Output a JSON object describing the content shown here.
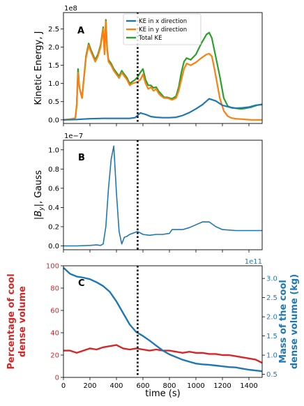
{
  "chart_data": [
    {
      "type": "line",
      "panel_label": "A",
      "ylabel": "Kinetic Energy, J",
      "y_exponent": "1e8",
      "xlim": [
        0,
        1500
      ],
      "ylim": [
        -0.1,
        2.95
      ],
      "yticks": [
        0.0,
        0.5,
        1.0,
        1.5,
        2.0,
        2.5
      ],
      "ytick_labels": [
        "0.0",
        "0.5",
        "1.0",
        "1.5",
        "2.0",
        "2.5"
      ],
      "xticks": [
        0,
        200,
        400,
        600,
        800,
        1000,
        1200,
        1400
      ],
      "vline_x": 560,
      "legend_position": "top-center",
      "series": [
        {
          "name": "KE in x direction",
          "color": "#1f77b4",
          "x": [
            0,
            100,
            150,
            200,
            300,
            350,
            400,
            450,
            500,
            540,
            560,
            580,
            620,
            660,
            700,
            750,
            800,
            850,
            900,
            950,
            1000,
            1050,
            1100,
            1150,
            1200,
            1250,
            1300,
            1350,
            1400,
            1450,
            1500
          ],
          "y": [
            0.0,
            0.01,
            0.02,
            0.03,
            0.04,
            0.04,
            0.04,
            0.04,
            0.04,
            0.06,
            0.12,
            0.19,
            0.15,
            0.09,
            0.07,
            0.06,
            0.06,
            0.07,
            0.12,
            0.2,
            0.3,
            0.42,
            0.58,
            0.52,
            0.4,
            0.35,
            0.32,
            0.33,
            0.35,
            0.4,
            0.42
          ]
        },
        {
          "name": "KE in y direction",
          "color": "#ff7f0e",
          "x": [
            0,
            60,
            90,
            100,
            110,
            120,
            140,
            170,
            190,
            210,
            240,
            260,
            280,
            300,
            310,
            320,
            330,
            340,
            360,
            380,
            400,
            420,
            440,
            460,
            480,
            500,
            520,
            540,
            560,
            580,
            600,
            620,
            640,
            660,
            680,
            700,
            720,
            740,
            760,
            780,
            800,
            820,
            850,
            870,
            890,
            910,
            930,
            960,
            1000,
            1040,
            1080,
            1100,
            1120,
            1140,
            1180,
            1210,
            1240,
            1270,
            1300,
            1340,
            1380,
            1420,
            1460,
            1500
          ],
          "y": [
            0.0,
            0.02,
            0.05,
            0.4,
            1.3,
            0.9,
            0.6,
            1.7,
            2.05,
            1.85,
            1.6,
            1.75,
            2.0,
            2.5,
            1.8,
            2.7,
            1.9,
            1.6,
            1.5,
            1.35,
            1.25,
            1.15,
            1.3,
            1.2,
            1.1,
            0.95,
            1.0,
            1.02,
            1.05,
            1.1,
            1.25,
            1.0,
            0.85,
            0.9,
            0.8,
            0.85,
            0.72,
            0.65,
            0.6,
            0.6,
            0.58,
            0.55,
            0.6,
            0.8,
            1.1,
            1.4,
            1.55,
            1.5,
            1.58,
            1.7,
            1.8,
            1.82,
            1.75,
            1.4,
            0.6,
            0.25,
            0.1,
            0.05,
            0.03,
            0.02,
            0.01,
            0.0,
            0.0,
            0.0
          ]
        },
        {
          "name": "Total KE",
          "color": "#2ca02c",
          "x": [
            0,
            60,
            90,
            100,
            110,
            120,
            140,
            170,
            190,
            210,
            240,
            260,
            280,
            300,
            310,
            320,
            330,
            340,
            360,
            380,
            400,
            420,
            440,
            460,
            480,
            500,
            520,
            540,
            560,
            580,
            600,
            620,
            640,
            660,
            680,
            700,
            720,
            740,
            760,
            780,
            800,
            820,
            850,
            870,
            890,
            910,
            930,
            960,
            1000,
            1040,
            1080,
            1100,
            1120,
            1140,
            1180,
            1210,
            1240,
            1270,
            1300,
            1340,
            1380,
            1420,
            1460,
            1500
          ],
          "y": [
            0.0,
            0.02,
            0.05,
            0.4,
            1.4,
            0.9,
            0.6,
            1.75,
            2.1,
            1.9,
            1.65,
            1.8,
            2.05,
            2.55,
            1.85,
            2.75,
            1.95,
            1.65,
            1.55,
            1.4,
            1.3,
            1.2,
            1.35,
            1.25,
            1.15,
            1.0,
            1.05,
            1.1,
            1.18,
            1.3,
            1.4,
            1.1,
            0.95,
            0.95,
            0.88,
            0.9,
            0.78,
            0.7,
            0.62,
            0.62,
            0.6,
            0.58,
            0.65,
            0.9,
            1.3,
            1.6,
            1.7,
            1.65,
            1.8,
            2.1,
            2.35,
            2.4,
            2.25,
            1.9,
            1.2,
            0.6,
            0.38,
            0.33,
            0.32,
            0.3,
            0.32,
            0.35,
            0.4,
            0.43
          ]
        }
      ]
    },
    {
      "type": "line",
      "panel_label": "B",
      "ylabel": "|B_y|, Gauss",
      "ylabel_parts": [
        "|",
        "B",
        "y",
        "|, Gauss"
      ],
      "y_exponent": "1e−7",
      "xlim": [
        0,
        1500
      ],
      "ylim": [
        -0.04,
        1.1
      ],
      "yticks": [
        0.0,
        0.2,
        0.4,
        0.6,
        0.8,
        1.0
      ],
      "ytick_labels": [
        "0.0",
        "0.2",
        "0.4",
        "0.6",
        "0.8",
        "1.0"
      ],
      "xticks": [
        0,
        200,
        400,
        600,
        800,
        1000,
        1200,
        1400
      ],
      "vline_x": 560,
      "series": [
        {
          "color": "#1f77b4",
          "x": [
            0,
            100,
            200,
            250,
            280,
            300,
            320,
            340,
            360,
            380,
            400,
            420,
            440,
            460,
            480,
            500,
            540,
            560,
            600,
            650,
            700,
            750,
            800,
            820,
            850,
            900,
            950,
            1000,
            1050,
            1100,
            1150,
            1200,
            1300,
            1400,
            1500
          ],
          "y": [
            0.0,
            0.0,
            0.005,
            0.01,
            0.005,
            0.02,
            0.2,
            0.6,
            0.9,
            1.04,
            0.55,
            0.15,
            0.02,
            0.09,
            0.1,
            0.12,
            0.14,
            0.15,
            0.12,
            0.11,
            0.12,
            0.12,
            0.13,
            0.17,
            0.17,
            0.17,
            0.19,
            0.22,
            0.25,
            0.25,
            0.2,
            0.17,
            0.16,
            0.16,
            0.16
          ]
        }
      ]
    },
    {
      "type": "line",
      "panel_label": "C",
      "xlabel": "time (s)",
      "xlim": [
        0,
        1500
      ],
      "xticks": [
        0,
        200,
        400,
        600,
        800,
        1000,
        1200,
        1400
      ],
      "xtick_labels": [
        "0",
        "200",
        "400",
        "600",
        "800",
        "1000",
        "1200",
        "1400"
      ],
      "vline_x": 560,
      "left_axis": {
        "label_lines": [
          "Percentage of cool",
          "dense volume"
        ],
        "color": "#d62728",
        "ylim": [
          0,
          100
        ],
        "yticks": [
          0,
          20,
          40,
          60,
          80,
          100
        ],
        "ytick_labels": [
          "0",
          "20",
          "40",
          "60",
          "80",
          "100"
        ]
      },
      "right_axis": {
        "label_lines": [
          "Mass of the cool",
          "dense volume (kg)"
        ],
        "color": "#1f77b4",
        "exponent": "1e11",
        "ylim": [
          0.42,
          3.33
        ],
        "yticks": [
          0.5,
          1.0,
          1.5,
          2.0,
          2.5,
          3.0
        ],
        "ytick_labels": [
          "0.5",
          "1.0",
          "1.5",
          "2.0",
          "2.5",
          "3.0"
        ]
      },
      "series": [
        {
          "axis": "left",
          "color": "#d62728",
          "x": [
            0,
            50,
            100,
            150,
            200,
            250,
            300,
            350,
            400,
            450,
            500,
            550,
            600,
            650,
            700,
            750,
            800,
            850,
            900,
            950,
            1000,
            1050,
            1100,
            1150,
            1200,
            1250,
            1300,
            1350,
            1400,
            1450,
            1500
          ],
          "y": [
            24,
            24,
            22,
            24,
            26,
            25,
            27,
            28,
            29,
            26,
            25,
            26,
            25,
            24,
            25,
            24,
            24,
            23,
            22,
            23,
            22,
            22,
            21,
            21,
            20,
            20,
            19,
            18,
            17,
            16,
            13
          ]
        },
        {
          "axis": "right",
          "color": "#1f77b4",
          "x": [
            0,
            50,
            100,
            150,
            200,
            250,
            300,
            350,
            400,
            450,
            500,
            550,
            600,
            650,
            700,
            750,
            800,
            850,
            900,
            950,
            1000,
            1050,
            1100,
            1150,
            1200,
            1250,
            1300,
            1350,
            1400,
            1450,
            1500
          ],
          "y": [
            3.28,
            3.12,
            3.05,
            3.02,
            2.98,
            2.9,
            2.8,
            2.65,
            2.4,
            2.1,
            1.8,
            1.6,
            1.5,
            1.38,
            1.25,
            1.12,
            1.02,
            0.95,
            0.88,
            0.83,
            0.78,
            0.76,
            0.75,
            0.73,
            0.71,
            0.69,
            0.68,
            0.65,
            0.62,
            0.6,
            0.58
          ]
        }
      ]
    }
  ]
}
